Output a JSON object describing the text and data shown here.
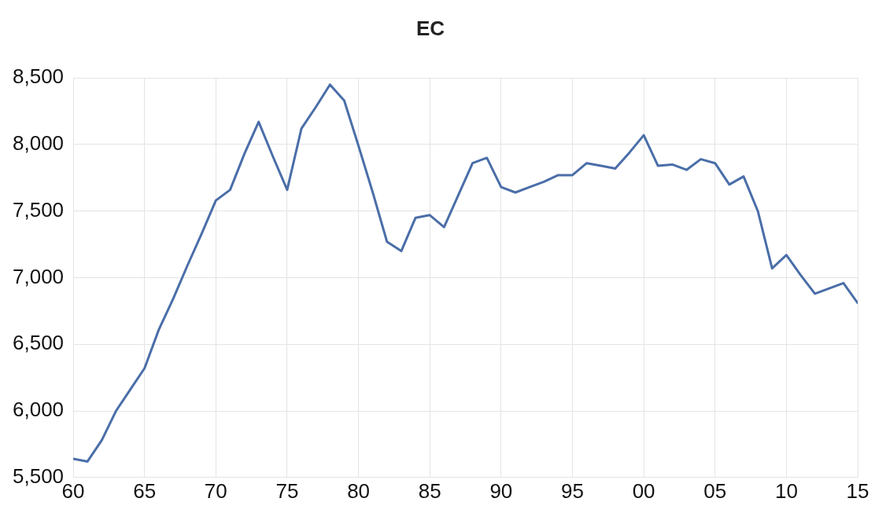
{
  "chart_data": {
    "type": "line",
    "title": "EC",
    "x": [
      1960,
      1961,
      1962,
      1963,
      1964,
      1965,
      1966,
      1967,
      1968,
      1969,
      1970,
      1971,
      1972,
      1973,
      1974,
      1975,
      1976,
      1977,
      1978,
      1979,
      1980,
      1981,
      1982,
      1983,
      1984,
      1985,
      1986,
      1987,
      1988,
      1989,
      1990,
      1991,
      1992,
      1993,
      1994,
      1995,
      1996,
      1997,
      1998,
      1999,
      2000,
      2001,
      2002,
      2003,
      2004,
      2005,
      2006,
      2007,
      2008,
      2009,
      2010,
      2011,
      2012,
      2013,
      2014,
      2015
    ],
    "series": [
      {
        "color": "#4a6ea8",
        "values": [
          5640,
          5620,
          5780,
          6000,
          6160,
          6320,
          6610,
          6840,
          7090,
          7330,
          7580,
          7660,
          7930,
          8170,
          7910,
          7660,
          8120,
          8280,
          8450,
          8330,
          7990,
          7640,
          7270,
          7200,
          7450,
          7470,
          7380,
          7620,
          7860,
          7900,
          7680,
          7640,
          7680,
          7720,
          7770,
          7770,
          7860,
          7840,
          7820,
          7940,
          8070,
          7840,
          7850,
          7810,
          7890,
          7860,
          7700,
          7760,
          7500,
          7070,
          7170,
          7020,
          6880,
          6920,
          6960,
          6810
        ]
      }
    ],
    "xlim": [
      1960,
      2015
    ],
    "xticks": [
      {
        "value": 1960,
        "label": "60"
      },
      {
        "value": 1965,
        "label": "65"
      },
      {
        "value": 1970,
        "label": "70"
      },
      {
        "value": 1975,
        "label": "75"
      },
      {
        "value": 1980,
        "label": "80"
      },
      {
        "value": 1985,
        "label": "85"
      },
      {
        "value": 1990,
        "label": "90"
      },
      {
        "value": 1995,
        "label": "95"
      },
      {
        "value": 2000,
        "label": "00"
      },
      {
        "value": 2005,
        "label": "05"
      },
      {
        "value": 2010,
        "label": "10"
      },
      {
        "value": 2015,
        "label": "15"
      }
    ],
    "ylim": [
      5500,
      8500
    ],
    "yticks": [
      {
        "value": 5500,
        "label": "5,500"
      },
      {
        "value": 6000,
        "label": "6,000"
      },
      {
        "value": 6500,
        "label": "6,500"
      },
      {
        "value": 7000,
        "label": "7,000"
      },
      {
        "value": 7500,
        "label": "7,500"
      },
      {
        "value": 8000,
        "label": "8,000"
      },
      {
        "value": 8500,
        "label": "8,500"
      }
    ],
    "grid": true,
    "legend": false,
    "marker": "none",
    "line_style": "solid"
  }
}
